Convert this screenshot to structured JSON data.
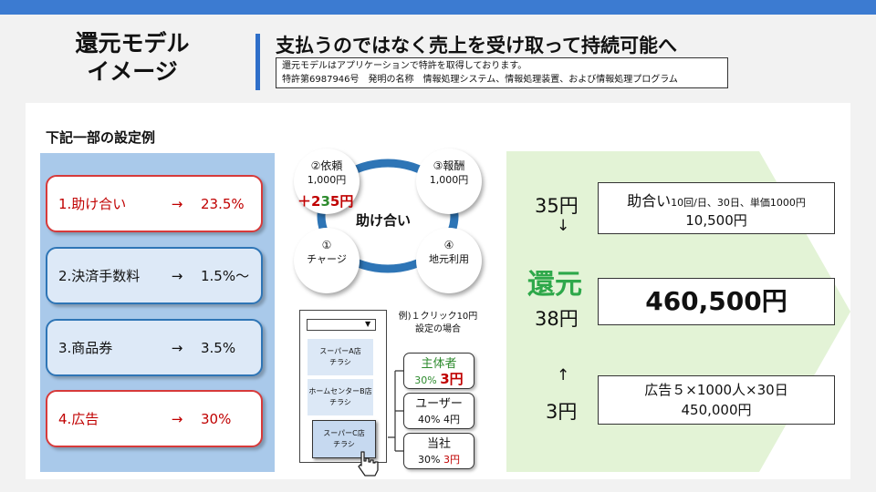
{
  "header": {
    "title_line1": "還元モデル",
    "title_line2": "イメージ",
    "headline": "支払うのではなく売上を受け取って持続可能へ",
    "patent_line1": "還元モデルはアプリケーションで特許を取得しております。",
    "patent_line2": "特許第6987946号　発明の名称　情報処理システム、情報処理装置、および情報処理プログラム"
  },
  "examples": {
    "heading": "下記一部の設定例",
    "items": [
      {
        "name": "1.助け合い",
        "arrow": "→",
        "value": "23.5%"
      },
      {
        "name": "2.決済手数料",
        "arrow": "→",
        "value": "1.5%〜"
      },
      {
        "name": "3.商品券",
        "arrow": "→",
        "value": "3.5%"
      },
      {
        "name": "4.広告",
        "arrow": "→",
        "value": "30%"
      }
    ]
  },
  "cycle": {
    "center": "助け合い",
    "bonus_plus": "＋",
    "bonus_2": "2",
    "bonus_3": "3",
    "bonus_5": "5",
    "bonus_unit": "円",
    "nodes": [
      {
        "title": "②依頼",
        "sub": "1,000円"
      },
      {
        "title": "③報酬",
        "sub": "1,000円"
      },
      {
        "title": "①",
        "sub": "チャージ"
      },
      {
        "title": "④",
        "sub": "地元利用"
      }
    ]
  },
  "flyers": {
    "a_l1": "スーパーA店",
    "a_l2": "チラシ",
    "b_l1": "ホームセンターB店",
    "b_l2": "チラシ",
    "c_l1": "スーパーC店",
    "c_l2": "チラシ",
    "dropdown_icon": "▼"
  },
  "split": {
    "note_l1": "例)１クリック10円",
    "note_l2": "設定の場合",
    "organizer": {
      "name": "主体者",
      "pct": "30%",
      "amt": "3円"
    },
    "user": {
      "name": "ユーザー",
      "pct": "40%",
      "amt": "4円"
    },
    "company": {
      "name": "当社",
      "pct": "30%",
      "amt": "3円"
    }
  },
  "revenue": {
    "top_yen": "35円",
    "down_arrow": "↓",
    "return_label": "還元",
    "mid_yen": "38円",
    "up_arrow": "↑",
    "bottom_yen": "3円",
    "help_title": "助合い",
    "help_detail": "10回/日、30日、単価1000円",
    "help_amount": "10,500円",
    "total": "460,500円",
    "ad_line1": "広告５×1000人×30日",
    "ad_line2": "450,000円"
  },
  "colors": {
    "accent_blue": "#2f6fc9",
    "highlight_red": "#c00000",
    "return_green": "#2ea84a",
    "arrow_green": "#e3f3d6"
  }
}
